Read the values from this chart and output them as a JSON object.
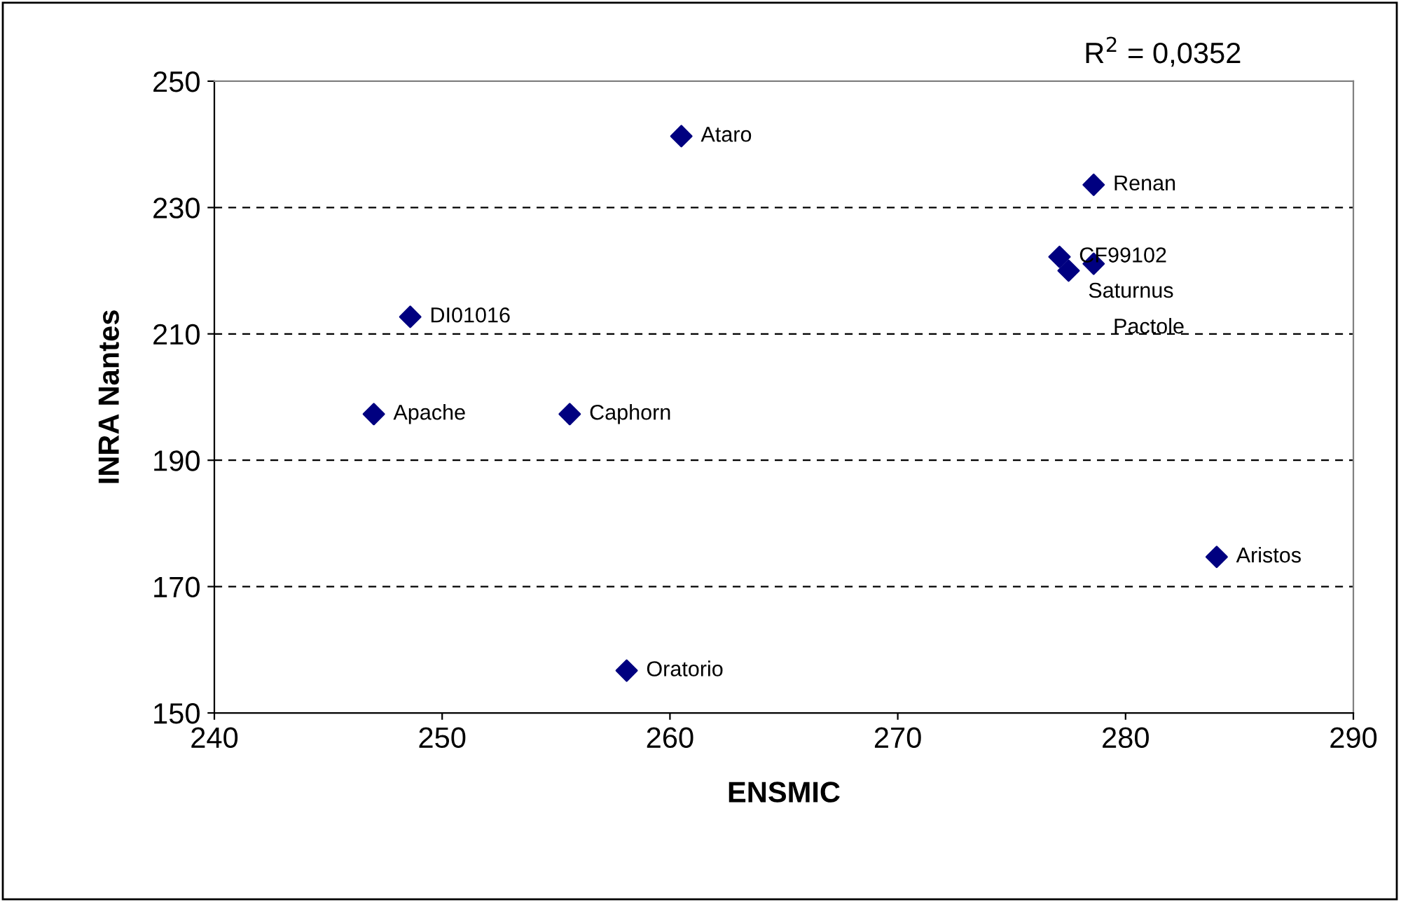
{
  "chart_data": {
    "type": "scatter",
    "xlabel": "ENSMIC",
    "ylabel": "INRA Nantes",
    "x": [
      260.5,
      278.6,
      277.1,
      277.5,
      278.6,
      248.6,
      247.0,
      255.6,
      258.1,
      284.0
    ],
    "values": [
      241.3,
      233.6,
      222.2,
      220.0,
      221.1,
      212.7,
      197.3,
      197.3,
      156.7,
      174.7
    ],
    "color": "#000080",
    "marker": "diamond",
    "xlim": [
      240,
      290
    ],
    "xticks": [
      240,
      250,
      260,
      270,
      280,
      290
    ],
    "ylim": [
      150,
      250
    ],
    "yticks": [
      150,
      170,
      190,
      210,
      230,
      250
    ],
    "grid": "y",
    "annotations": [
      {
        "text": "Ataro",
        "x": 260.5,
        "y": 241.3
      },
      {
        "text": "Renan",
        "x": 278.6,
        "y": 233.6
      },
      {
        "text": "CF99102",
        "x": 277.1,
        "y": 222.2
      },
      {
        "text": "Saturnus",
        "x": 277.5,
        "y": 220.0
      },
      {
        "text": "Pactole",
        "x": 278.6,
        "y": 221.1
      },
      {
        "text": "DI01016",
        "x": 248.6,
        "y": 212.7
      },
      {
        "text": "Apache",
        "x": 247.0,
        "y": 197.3
      },
      {
        "text": "Caphorn",
        "x": 255.6,
        "y": 197.3
      },
      {
        "text": "Oratorio",
        "x": 258.1,
        "y": 156.7
      },
      {
        "text": "Aristos",
        "x": 284.0,
        "y": 174.7
      },
      "R$^{2}$ = 0,0352"
    ]
  }
}
